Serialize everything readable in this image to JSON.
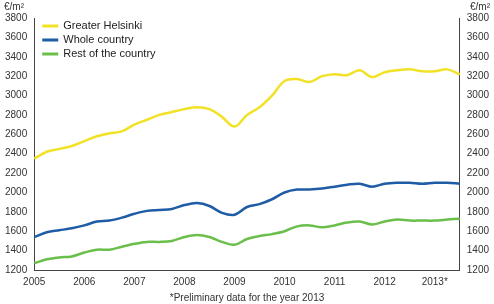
{
  "chart_data": {
    "type": "line",
    "ylabel": "€/m²",
    "annotation": "*Preliminary data for the year 2013",
    "categories": [
      "2005",
      null,
      null,
      null,
      "2006",
      null,
      null,
      null,
      "2007",
      null,
      null,
      null,
      "2008",
      null,
      null,
      null,
      "2009",
      null,
      null,
      null,
      "2010",
      null,
      null,
      null,
      "2011",
      null,
      null,
      null,
      "2012",
      null,
      null,
      null,
      "2013*",
      null,
      null
    ],
    "series": [
      {
        "name": "Greater Helsinki",
        "color": "#f2e227",
        "values": [
          2350,
          2420,
          2450,
          2480,
          2530,
          2580,
          2610,
          2630,
          2700,
          2750,
          2800,
          2830,
          2860,
          2880,
          2860,
          2780,
          2680,
          2800,
          2880,
          3000,
          3150,
          3170,
          3140,
          3200,
          3220,
          3210,
          3260,
          3190,
          3240,
          3260,
          3270,
          3250,
          3250,
          3270,
          3220
        ]
      },
      {
        "name": "Whole country",
        "color": "#1f5ca6",
        "values": [
          1540,
          1590,
          1610,
          1630,
          1660,
          1700,
          1710,
          1740,
          1780,
          1810,
          1820,
          1830,
          1870,
          1890,
          1860,
          1790,
          1770,
          1850,
          1880,
          1930,
          2000,
          2030,
          2030,
          2040,
          2060,
          2080,
          2090,
          2060,
          2090,
          2100,
          2100,
          2090,
          2100,
          2100,
          2090
        ]
      },
      {
        "name": "Rest of the country",
        "color": "#6abf4b",
        "values": [
          1270,
          1310,
          1330,
          1340,
          1380,
          1410,
          1410,
          1440,
          1470,
          1490,
          1490,
          1500,
          1540,
          1560,
          1540,
          1490,
          1460,
          1520,
          1550,
          1570,
          1600,
          1650,
          1660,
          1640,
          1660,
          1690,
          1700,
          1670,
          1700,
          1720,
          1710,
          1710,
          1710,
          1720,
          1730
        ]
      }
    ],
    "ylim": [
      1200,
      3800
    ],
    "yticks": [
      1200,
      1400,
      1600,
      1800,
      2000,
      2200,
      2400,
      2600,
      2800,
      3000,
      3200,
      3400,
      3600,
      3800
    ],
    "y2lim": [
      1200,
      3800
    ],
    "y2ticks": [
      1200,
      1400,
      1600,
      1800,
      2000,
      2200,
      2400,
      2600,
      2800,
      3000,
      3200,
      3400,
      3600,
      3800
    ],
    "grid": false,
    "legend": "top-left"
  }
}
